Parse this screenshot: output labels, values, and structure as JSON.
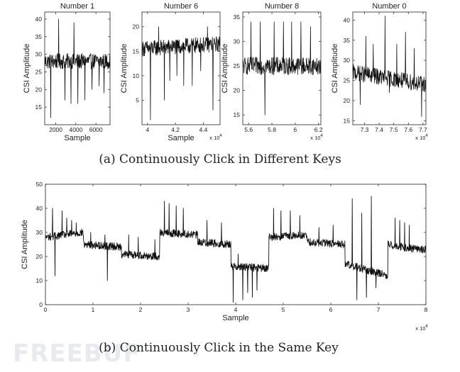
{
  "captions": {
    "a": "(a) Continuously Click in Different Keys",
    "b": "(b) Continuously Click in the Same Key"
  },
  "watermark": "FREEBUF",
  "colors": {
    "line": "#111111",
    "axis": "#222222",
    "watermark": "#e8eaef"
  },
  "chart_data": [
    {
      "type": "line",
      "title": "Number 1",
      "xlabel": "Sample",
      "ylabel": "CSI Amplitude",
      "x_multiplier": "",
      "xlim": [
        900,
        7400
      ],
      "ylim": [
        10,
        42
      ],
      "x_ticks": [
        2000,
        4000,
        6000
      ],
      "x_tick_labels": [
        "2000",
        "4000",
        "6000"
      ],
      "y_ticks": [
        15,
        20,
        25,
        30,
        35,
        40
      ],
      "y_tick_labels": [
        "15",
        "20",
        "25",
        "30",
        "35",
        "40"
      ],
      "series": [
        {
          "baseline": [
            [
              900,
              28
            ],
            [
              7400,
              28
            ]
          ],
          "noise": 2.2,
          "spikes": [
            [
              1500,
              12
            ],
            [
              2300,
              40
            ],
            [
              2900,
              17
            ],
            [
              3500,
              16
            ],
            [
              3800,
              39
            ],
            [
              4200,
              16
            ],
            [
              4900,
              17
            ],
            [
              5600,
              20
            ],
            [
              6300,
              21
            ],
            [
              6800,
              19
            ]
          ]
        }
      ]
    },
    {
      "type": "line",
      "title": "Number 6",
      "xlabel": "Sample",
      "ylabel": "CSI Amplitude",
      "x_multiplier": "x 10^4",
      "xlim": [
        3.96,
        4.52
      ],
      "ylim": [
        0,
        23
      ],
      "x_ticks": [
        4,
        4.2,
        4.4
      ],
      "x_tick_labels": [
        "4",
        "4.2",
        "4.4"
      ],
      "y_ticks": [
        5,
        10,
        15,
        20
      ],
      "y_tick_labels": [
        "5",
        "10",
        "15",
        "20"
      ],
      "series": [
        {
          "baseline": [
            [
              3.96,
              15.5
            ],
            [
              4.52,
              16.5
            ]
          ],
          "noise": 1.6,
          "spikes": [
            [
              4.02,
              1
            ],
            [
              4.08,
              20
            ],
            [
              4.12,
              5
            ],
            [
              4.16,
              9
            ],
            [
              4.21,
              10
            ],
            [
              4.26,
              8
            ],
            [
              4.32,
              8
            ],
            [
              4.38,
              11
            ],
            [
              4.43,
              20
            ],
            [
              4.47,
              3
            ]
          ]
        }
      ]
    },
    {
      "type": "line",
      "title": "Number 8",
      "xlabel": "",
      "ylabel": "CSI Amplitude",
      "x_multiplier": "x 10^4",
      "xlim": [
        5.55,
        6.22
      ],
      "ylim": [
        13,
        36
      ],
      "x_ticks": [
        5.6,
        5.8,
        6,
        6.2
      ],
      "x_tick_labels": [
        "5.6",
        "5.8",
        "6",
        "6.2"
      ],
      "y_ticks": [
        15,
        20,
        25,
        30,
        35
      ],
      "y_tick_labels": [
        "15",
        "20",
        "25",
        "30",
        "35"
      ],
      "series": [
        {
          "baseline": [
            [
              5.55,
              25
            ],
            [
              6.22,
              25
            ]
          ],
          "noise": 1.8,
          "spikes": [
            [
              5.62,
              34
            ],
            [
              5.7,
              34
            ],
            [
              5.74,
              15
            ],
            [
              5.82,
              34
            ],
            [
              5.9,
              34
            ],
            [
              5.97,
              34
            ],
            [
              6.05,
              34
            ],
            [
              6.13,
              33
            ]
          ]
        }
      ]
    },
    {
      "type": "line",
      "title": "Number 0",
      "xlabel": "",
      "ylabel": "CSI Amplitude",
      "x_multiplier": "x 10^4",
      "xlim": [
        7.22,
        7.72
      ],
      "ylim": [
        14,
        42
      ],
      "x_ticks": [
        7.3,
        7.4,
        7.5,
        7.6,
        7.7
      ],
      "x_tick_labels": [
        "7.3",
        "7.4",
        "7.5",
        "7.6",
        "7.7"
      ],
      "y_ticks": [
        15,
        20,
        25,
        30,
        35,
        40
      ],
      "y_tick_labels": [
        "15",
        "20",
        "25",
        "30",
        "35",
        "40"
      ],
      "series": [
        {
          "baseline": [
            [
              7.22,
              27
            ],
            [
              7.72,
              24
            ]
          ],
          "noise": 2.0,
          "spikes": [
            [
              7.27,
              19
            ],
            [
              7.31,
              36
            ],
            [
              7.36,
              34
            ],
            [
              7.44,
              41
            ],
            [
              7.47,
              22
            ],
            [
              7.52,
              34
            ],
            [
              7.58,
              37
            ],
            [
              7.64,
              33
            ],
            [
              7.69,
              16
            ]
          ]
        }
      ]
    },
    {
      "type": "line",
      "title": "",
      "xlabel": "Sample",
      "ylabel": "CSI Amplitude",
      "x_multiplier": "x 10^4",
      "xlim": [
        0,
        8
      ],
      "ylim": [
        0,
        50
      ],
      "x_ticks": [
        0,
        1,
        2,
        3,
        4,
        5,
        6,
        7,
        8
      ],
      "x_tick_labels": [
        "0",
        "1",
        "2",
        "3",
        "4",
        "5",
        "6",
        "7",
        "8"
      ],
      "y_ticks": [
        0,
        10,
        20,
        30,
        40,
        50
      ],
      "y_tick_labels": [
        "0",
        "10",
        "20",
        "30",
        "40",
        "50"
      ],
      "series": [
        {
          "baseline": [
            [
              0,
              28
            ],
            [
              0.8,
              30
            ],
            [
              0.8,
              25
            ],
            [
              1.6,
              24
            ],
            [
              1.6,
              21
            ],
            [
              2.4,
              20
            ],
            [
              2.4,
              30
            ],
            [
              3.2,
              29
            ],
            [
              3.2,
              26
            ],
            [
              3.9,
              25
            ],
            [
              3.9,
              16
            ],
            [
              4.7,
              15
            ],
            [
              4.7,
              28
            ],
            [
              5.5,
              29
            ],
            [
              5.5,
              26
            ],
            [
              6.3,
              25
            ],
            [
              6.3,
              17
            ],
            [
              7.2,
              12
            ],
            [
              7.2,
              25
            ],
            [
              7.8,
              23
            ]
          ],
          "noise": 1.6,
          "spikes": [
            [
              0.15,
              40
            ],
            [
              0.2,
              12
            ],
            [
              0.35,
              39
            ],
            [
              0.45,
              36
            ],
            [
              0.55,
              35
            ],
            [
              0.65,
              34
            ],
            [
              0.95,
              30
            ],
            [
              1.25,
              29
            ],
            [
              1.3,
              10
            ],
            [
              1.75,
              29
            ],
            [
              1.95,
              28
            ],
            [
              2.3,
              27
            ],
            [
              2.5,
              43
            ],
            [
              2.6,
              42
            ],
            [
              2.75,
              41
            ],
            [
              2.9,
              40
            ],
            [
              3.4,
              35
            ],
            [
              3.7,
              34
            ],
            [
              3.95,
              1
            ],
            [
              4.05,
              21
            ],
            [
              4.15,
              2
            ],
            [
              4.25,
              5
            ],
            [
              4.35,
              3
            ],
            [
              4.45,
              6
            ],
            [
              4.8,
              40
            ],
            [
              4.95,
              39
            ],
            [
              5.15,
              39
            ],
            [
              5.35,
              37
            ],
            [
              5.75,
              32
            ],
            [
              6.05,
              33
            ],
            [
              6.45,
              44
            ],
            [
              6.55,
              2
            ],
            [
              6.65,
              38
            ],
            [
              6.75,
              3
            ],
            [
              6.85,
              45
            ],
            [
              6.95,
              7
            ],
            [
              7.35,
              36
            ],
            [
              7.45,
              35
            ],
            [
              7.55,
              34
            ],
            [
              7.65,
              33
            ]
          ]
        }
      ]
    }
  ]
}
